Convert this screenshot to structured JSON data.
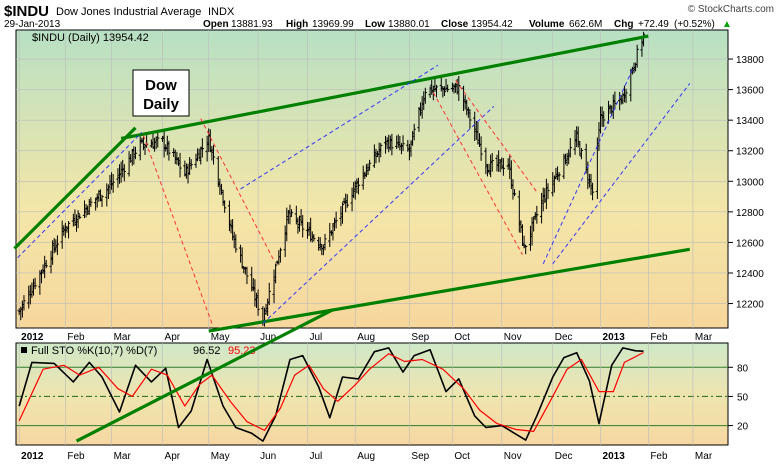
{
  "header": {
    "symbol": "$INDU",
    "name": "Dow Jones Industrial Average",
    "exchange": "INDX",
    "date": "29-Jan-2013",
    "open_label": "Open",
    "open": "13881.93",
    "high_label": "High",
    "high": "13969.99",
    "low_label": "Low",
    "low": "13880.01",
    "close_label": "Close",
    "close": "13954.42",
    "volume_label": "Volume",
    "volume": "662.6M",
    "chg_label": "Chg",
    "chg": "+72.49",
    "chg_pct": "(+0.52%)",
    "chg_arrow": "▲",
    "copyright": "© StockCharts.com"
  },
  "price_panel": {
    "legend": "$INDU (Daily) 13954.42",
    "annotation_line1": "Dow",
    "annotation_line2": "Daily"
  },
  "sto_panel": {
    "legend_prefix": "Full STO %K(10,7) %D(7)",
    "k_value": "96.52",
    "d_value": "95.23"
  },
  "colors": {
    "trend_green": "#008000",
    "blue_channel": "#3333ff",
    "red_channel": "#ff3333",
    "sto_k": "#000000",
    "sto_d": "#ff0000",
    "panel_top": "#b8e0c4",
    "panel_mid": "#f3e6a8",
    "panel_bottom": "#f6d79e"
  },
  "chart_data": [
    {
      "type": "ohlc",
      "title": "$INDU (Daily) 13954.42",
      "y_ticks": [
        12200,
        12400,
        12600,
        12800,
        13000,
        13200,
        13400,
        13600,
        13800
      ],
      "ylim": [
        12040,
        13990
      ],
      "x_labels": [
        "2012",
        "Feb",
        "Mar",
        "Apr",
        "May",
        "Jun",
        "Jul",
        "Aug",
        "Sep",
        "Oct",
        "Nov",
        "Dec",
        "2013",
        "Feb",
        "Mar"
      ],
      "x_label_dates": [
        "2012-01-03",
        "2012-02-01",
        "2012-03-01",
        "2012-04-02",
        "2012-05-01",
        "2012-06-01",
        "2012-07-02",
        "2012-08-01",
        "2012-09-04",
        "2012-10-01",
        "2012-11-01",
        "2012-12-03",
        "2013-01-02",
        "2013-02-01",
        "2013-03-01"
      ],
      "xlim": [
        "2012-01-01",
        "2013-03-18"
      ],
      "key_closes": [
        {
          "date": "2012-01-03",
          "close": 12150
        },
        {
          "date": "2012-02-01",
          "close": 12700
        },
        {
          "date": "2012-03-01",
          "close": 12980
        },
        {
          "date": "2012-03-19",
          "close": 13240
        },
        {
          "date": "2012-04-02",
          "close": 13260
        },
        {
          "date": "2012-04-16",
          "close": 13050
        },
        {
          "date": "2012-05-01",
          "close": 13280
        },
        {
          "date": "2012-05-16",
          "close": 12640
        },
        {
          "date": "2012-06-04",
          "close": 12100
        },
        {
          "date": "2012-06-20",
          "close": 12780
        },
        {
          "date": "2012-07-12",
          "close": 12580
        },
        {
          "date": "2012-08-01",
          "close": 12970
        },
        {
          "date": "2012-08-20",
          "close": 13260
        },
        {
          "date": "2012-09-04",
          "close": 13200
        },
        {
          "date": "2012-09-14",
          "close": 13600
        },
        {
          "date": "2012-10-05",
          "close": 13610
        },
        {
          "date": "2012-10-23",
          "close": 13100
        },
        {
          "date": "2012-11-05",
          "close": 13110
        },
        {
          "date": "2012-11-15",
          "close": 12560
        },
        {
          "date": "2012-11-27",
          "close": 12890
        },
        {
          "date": "2012-12-18",
          "close": 13280
        },
        {
          "date": "2012-12-28",
          "close": 12930
        },
        {
          "date": "2013-01-02",
          "close": 13410
        },
        {
          "date": "2013-01-16",
          "close": 13550
        },
        {
          "date": "2013-01-29",
          "close": 13954
        }
      ],
      "trendlines": [
        {
          "color": "green",
          "style": "solid",
          "from": {
            "date": "2012-03-07",
            "value": 13280
          },
          "to": {
            "date": "2013-02-01",
            "value": 13950
          }
        },
        {
          "color": "green",
          "style": "solid",
          "from": {
            "date": "2012-05-01",
            "value": 12020
          },
          "to": {
            "date": "2013-02-27",
            "value": 12555
          }
        },
        {
          "color": "green",
          "style": "solid",
          "from": {
            "date": "2011-12-31",
            "value": 12560
          },
          "to": {
            "date": "2012-03-16",
            "value": 13350
          }
        },
        {
          "color": "green",
          "style": "solid",
          "from": {
            "date": "2012-02-08",
            "value": 11300
          },
          "to": {
            "date": "2012-07-18",
            "value": 12160
          }
        },
        {
          "color": "blue",
          "style": "dashed",
          "from": {
            "date": "2012-05-21",
            "value": 12950
          },
          "to": {
            "date": "2012-09-22",
            "value": 13760
          }
        },
        {
          "color": "blue",
          "style": "dashed",
          "from": {
            "date": "2012-06-04",
            "value": 12070
          },
          "to": {
            "date": "2012-10-27",
            "value": 13490
          }
        },
        {
          "color": "blue",
          "style": "dashed",
          "from": {
            "date": "2012-01-02",
            "value": 12500
          },
          "to": {
            "date": "2012-03-20",
            "value": 13320
          }
        },
        {
          "color": "blue",
          "style": "dashed",
          "from": {
            "date": "2012-11-27",
            "value": 12460
          },
          "to": {
            "date": "2013-01-22",
            "value": 13730
          }
        },
        {
          "color": "blue",
          "style": "dashed",
          "from": {
            "date": "2012-12-03",
            "value": 12460
          },
          "to": {
            "date": "2013-02-27",
            "value": 13640
          }
        },
        {
          "color": "red",
          "style": "dashed",
          "from": {
            "date": "2012-03-21",
            "value": 13300
          },
          "to": {
            "date": "2012-05-03",
            "value": 12070
          }
        },
        {
          "color": "red",
          "style": "dashed",
          "from": {
            "date": "2012-04-26",
            "value": 13410
          },
          "to": {
            "date": "2012-06-11",
            "value": 12480
          }
        },
        {
          "color": "red",
          "style": "dashed",
          "from": {
            "date": "2012-09-19",
            "value": 13580
          },
          "to": {
            "date": "2012-11-14",
            "value": 12520
          }
        },
        {
          "color": "red",
          "style": "dashed",
          "from": {
            "date": "2012-10-03",
            "value": 13660
          },
          "to": {
            "date": "2012-11-23",
            "value": 12930
          }
        }
      ]
    },
    {
      "type": "line",
      "title": "Full STO %K(10,7) %D(7) 96.52, 95.23",
      "y_ticks": [
        20,
        50,
        80
      ],
      "ylim": [
        0,
        105
      ],
      "grid": true,
      "series": [
        {
          "name": "%K(10,7)",
          "color": "#000000",
          "points": [
            [
              "2012-01-03",
              40
            ],
            [
              "2012-01-11",
              85
            ],
            [
              "2012-01-25",
              84
            ],
            [
              "2012-02-06",
              65
            ],
            [
              "2012-02-16",
              85
            ],
            [
              "2012-02-24",
              70
            ],
            [
              "2012-03-06",
              34
            ],
            [
              "2012-03-16",
              82
            ],
            [
              "2012-03-26",
              65
            ],
            [
              "2012-04-04",
              79
            ],
            [
              "2012-04-12",
              18
            ],
            [
              "2012-04-20",
              35
            ],
            [
              "2012-04-30",
              88
            ],
            [
              "2012-05-10",
              40
            ],
            [
              "2012-05-18",
              18
            ],
            [
              "2012-05-28",
              12
            ],
            [
              "2012-06-04",
              4
            ],
            [
              "2012-06-12",
              30
            ],
            [
              "2012-06-21",
              88
            ],
            [
              "2012-06-29",
              92
            ],
            [
              "2012-07-09",
              60
            ],
            [
              "2012-07-16",
              28
            ],
            [
              "2012-07-24",
              70
            ],
            [
              "2012-08-03",
              68
            ],
            [
              "2012-08-13",
              96
            ],
            [
              "2012-08-22",
              100
            ],
            [
              "2012-08-31",
              75
            ],
            [
              "2012-09-07",
              92
            ],
            [
              "2012-09-17",
              98
            ],
            [
              "2012-09-27",
              55
            ],
            [
              "2012-10-05",
              68
            ],
            [
              "2012-10-15",
              30
            ],
            [
              "2012-10-22",
              18
            ],
            [
              "2012-11-01",
              20
            ],
            [
              "2012-11-09",
              12
            ],
            [
              "2012-11-16",
              5
            ],
            [
              "2012-11-23",
              30
            ],
            [
              "2012-12-03",
              70
            ],
            [
              "2012-12-10",
              90
            ],
            [
              "2012-12-18",
              95
            ],
            [
              "2012-12-26",
              66
            ],
            [
              "2013-01-01",
              22
            ],
            [
              "2013-01-09",
              82
            ],
            [
              "2013-01-16",
              100
            ],
            [
              "2013-01-24",
              97
            ],
            [
              "2013-01-29",
              96.52
            ]
          ]
        },
        {
          "name": "%D(7)",
          "color": "#ff0000",
          "points": [
            [
              "2012-01-03",
              25
            ],
            [
              "2012-01-18",
              78
            ],
            [
              "2012-01-31",
              82
            ],
            [
              "2012-02-10",
              72
            ],
            [
              "2012-02-22",
              80
            ],
            [
              "2012-03-05",
              58
            ],
            [
              "2012-03-14",
              50
            ],
            [
              "2012-03-26",
              78
            ],
            [
              "2012-04-05",
              72
            ],
            [
              "2012-04-16",
              40
            ],
            [
              "2012-04-25",
              62
            ],
            [
              "2012-05-03",
              72
            ],
            [
              "2012-05-15",
              44
            ],
            [
              "2012-05-25",
              24
            ],
            [
              "2012-06-05",
              15
            ],
            [
              "2012-06-15",
              38
            ],
            [
              "2012-06-24",
              72
            ],
            [
              "2012-07-03",
              82
            ],
            [
              "2012-07-12",
              58
            ],
            [
              "2012-07-21",
              45
            ],
            [
              "2012-08-01",
              62
            ],
            [
              "2012-08-10",
              78
            ],
            [
              "2012-08-22",
              94
            ],
            [
              "2012-09-01",
              86
            ],
            [
              "2012-09-12",
              88
            ],
            [
              "2012-09-25",
              78
            ],
            [
              "2012-10-08",
              58
            ],
            [
              "2012-10-18",
              36
            ],
            [
              "2012-10-29",
              22
            ],
            [
              "2012-11-10",
              16
            ],
            [
              "2012-11-21",
              14
            ],
            [
              "2012-12-01",
              44
            ],
            [
              "2012-12-12",
              78
            ],
            [
              "2012-12-21",
              88
            ],
            [
              "2013-01-01",
              55
            ],
            [
              "2013-01-10",
              55
            ],
            [
              "2013-01-17",
              85
            ],
            [
              "2013-01-29",
              95.23
            ]
          ]
        }
      ]
    }
  ]
}
